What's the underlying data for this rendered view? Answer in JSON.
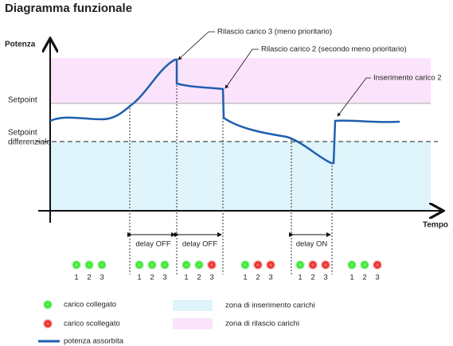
{
  "title": "Diagramma funzionale",
  "axes": {
    "y_label": "Potenza",
    "x_label": "Tempo",
    "setpoint": "Setpoint",
    "setpoint_diff": [
      "Setpoint",
      "differenziale"
    ]
  },
  "annotations": [
    "Rilascio carico 3 (meno prioritario)",
    "Rilascio carico 2 (secondo meno prioritario)",
    "Inserimento carico 2"
  ],
  "delays": [
    "delay OFF",
    "delay OFF",
    "delay ON"
  ],
  "led_groups": [
    [
      "1",
      "2",
      "3"
    ],
    [
      "1",
      "2",
      "3"
    ],
    [
      "1",
      "2",
      "3"
    ],
    [
      "1",
      "2",
      "3"
    ],
    [
      "1",
      "2",
      "3"
    ],
    [
      "1",
      "2",
      "3"
    ]
  ],
  "legend": {
    "connected": "carico collegato",
    "disconnected": "carico scollegato",
    "power": "potenza assorbita",
    "insert_zone": "zona di inserimento carichi",
    "release_zone": "zona di rilascio carichi"
  }
}
